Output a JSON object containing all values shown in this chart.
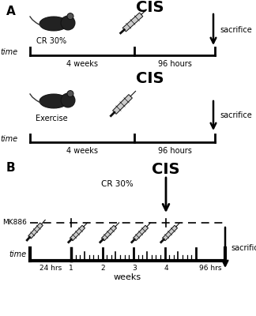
{
  "bg_color": "#ffffff",
  "panel_A_label": "A",
  "panel_B_label": "B",
  "panel_A_title1": "CIS",
  "panel_A_title2": "CIS",
  "panel_B_title": "CIS",
  "cr_label": "CR 30%",
  "exercise_label": "Exercise",
  "mk886_label": "MK886",
  "sacrifice_label": "sacrifice",
  "time_label": "time",
  "weeks_label": "weeks",
  "four_weeks": "4 weeks",
  "ninetysix_hours": "96 hours",
  "twenty4hrs": "24 hrs",
  "ninetysix_hrs": "96 hrs",
  "week_labels": [
    "1",
    "2",
    "3",
    "4"
  ]
}
